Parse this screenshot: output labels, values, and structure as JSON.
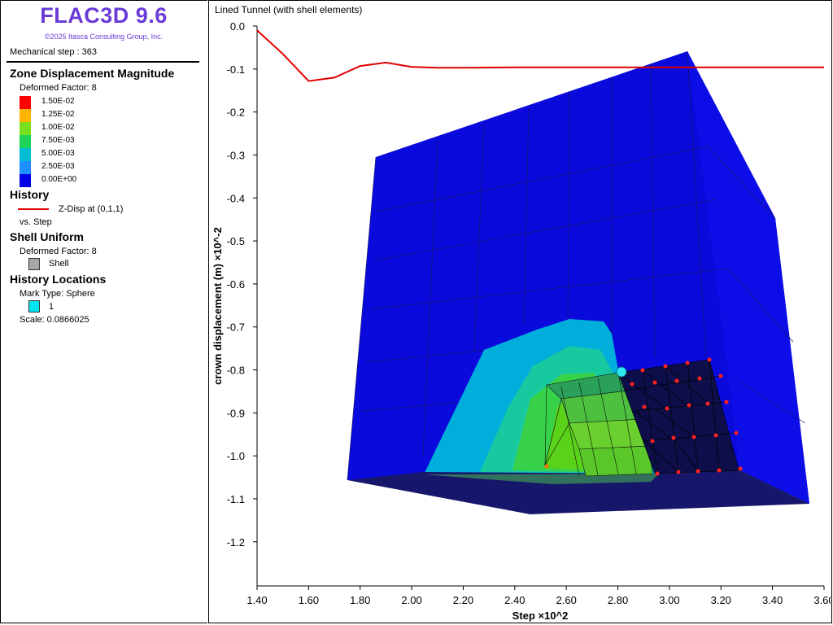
{
  "app": {
    "title": "FLAC3D 9.6",
    "copyright": "©2025 Itasca Consulting Group, Inc."
  },
  "status": {
    "step_text": "Mechanical step : 363"
  },
  "legend": {
    "zone": {
      "heading": "Zone Displacement Magnitude",
      "deformed": "Deformed Factor: 8",
      "scale": [
        {
          "label": "1.50E-02",
          "color": "#ff0000"
        },
        {
          "label": "1.25E-02",
          "color": "#ffb400"
        },
        {
          "label": "1.00E-02",
          "color": "#78e01e"
        },
        {
          "label": "7.50E-03",
          "color": "#1ed25a"
        },
        {
          "label": "5.00E-03",
          "color": "#00bcd4"
        },
        {
          "label": "2.50E-03",
          "color": "#1e90ff"
        },
        {
          "label": "0.00E+00",
          "color": "#0000e6"
        }
      ]
    },
    "history": {
      "heading": "History",
      "entry": "Z-Disp at (0,1,1)",
      "vs": "vs. Step",
      "line_color": "#e00000"
    },
    "shell": {
      "heading": "Shell Uniform",
      "deformed": "Deformed Factor: 8",
      "entry": "Shell",
      "color": "#a0a0a0"
    },
    "locations": {
      "heading": "History Locations",
      "mark": "Mark Type: Sphere",
      "entry": "1",
      "color": "#00e5ee",
      "scale": "Scale: 0.0866025"
    }
  },
  "plot": {
    "title": "Lined Tunnel (with shell elements)"
  },
  "chart_data": {
    "type": "line",
    "xlabel": "Step ×10^2",
    "ylabel": "crown displacement (m) ×10^-2",
    "xlim": [
      1.4,
      3.6
    ],
    "ylim": [
      -1.3,
      0.0
    ],
    "x_ticks": [
      "1.40",
      "1.60",
      "1.80",
      "2.00",
      "2.20",
      "2.40",
      "2.60",
      "2.80",
      "3.00",
      "3.20",
      "3.40",
      "3.60"
    ],
    "y_ticks": [
      "0.0",
      "-0.1",
      "-0.2",
      "-0.3",
      "-0.4",
      "-0.5",
      "-0.6",
      "-0.7",
      "-0.8",
      "-0.9",
      "-1.0",
      "-1.1",
      "-1.2"
    ],
    "series": [
      {
        "x": [
          1.4,
          1.5,
          1.6,
          1.7,
          1.8,
          1.9,
          2.0,
          2.1,
          2.2,
          2.4,
          2.6,
          2.8,
          3.0,
          3.2,
          3.4,
          3.6
        ],
        "y": [
          -0.01,
          -0.065,
          -0.128,
          -0.12,
          -0.093,
          -0.085,
          -0.095,
          -0.097,
          -0.097,
          -0.096,
          -0.096,
          -0.096,
          -0.096,
          -0.096,
          -0.096,
          -0.096
        ],
        "color": "#e00000"
      }
    ]
  }
}
